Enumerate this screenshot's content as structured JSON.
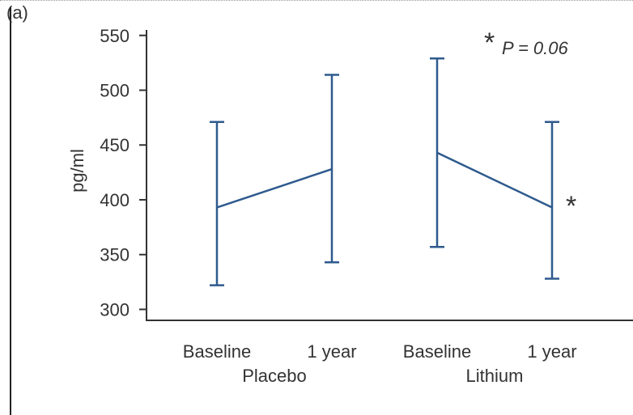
{
  "panel_label": "(a)",
  "chart_data": {
    "type": "line",
    "title": "",
    "xlabel": "",
    "ylabel": "pg/ml",
    "ylim": [
      290,
      555
    ],
    "yticks": [
      300,
      350,
      400,
      450,
      500,
      550
    ],
    "grid": false,
    "categories": [
      "Baseline",
      "1 year",
      "Baseline",
      "1 year"
    ],
    "groups": [
      {
        "label": "Placebo",
        "categories": [
          0,
          1
        ]
      },
      {
        "label": "Lithium",
        "categories": [
          2,
          3
        ]
      }
    ],
    "series": [
      {
        "group": "Placebo",
        "means": [
          393,
          428
        ],
        "upper": [
          471,
          514
        ],
        "lower": [
          322,
          343
        ]
      },
      {
        "group": "Lithium",
        "means": [
          443,
          393
        ],
        "upper": [
          529,
          471
        ],
        "lower": [
          357,
          328
        ]
      }
    ],
    "line_color": "#2e5a8e",
    "annotations": {
      "legend_star": "*",
      "legend_text": "P = 0.06",
      "point_star": "*"
    }
  }
}
